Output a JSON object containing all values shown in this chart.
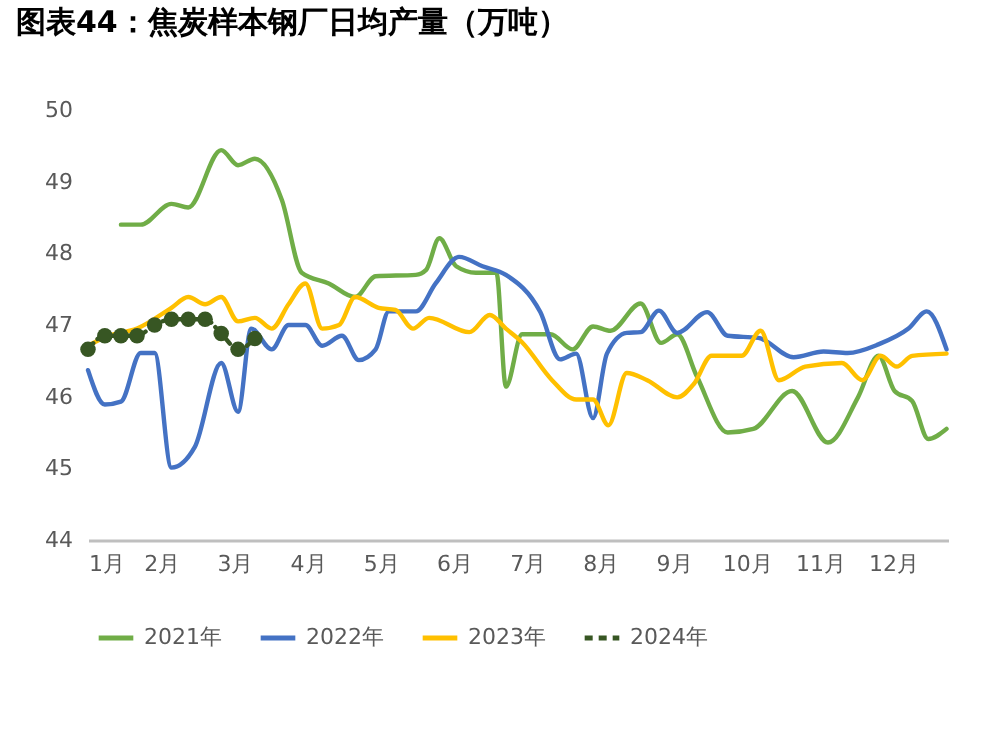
{
  "chart_data": {
    "type": "line",
    "title": "图表44：焦炭样本钢厂日均产量（万吨）",
    "xlim": [
      1,
      12.75
    ],
    "xticks": [
      {
        "value": 1,
        "label": "1月"
      },
      {
        "value": 2,
        "label": "2月"
      },
      {
        "value": 3,
        "label": "3月"
      },
      {
        "value": 4,
        "label": "4月"
      },
      {
        "value": 5,
        "label": "5月"
      },
      {
        "value": 6,
        "label": "6月"
      },
      {
        "value": 7,
        "label": "7月"
      },
      {
        "value": 8,
        "label": "8月"
      },
      {
        "value": 9,
        "label": "9月"
      },
      {
        "value": 10,
        "label": "10月"
      },
      {
        "value": 11,
        "label": "11月"
      },
      {
        "value": 12,
        "label": "12月"
      }
    ],
    "ylim": [
      44,
      50
    ],
    "yticks": [
      44,
      45,
      46,
      47,
      48,
      49,
      50
    ],
    "grid": false,
    "legend": "bottom",
    "series": [
      {
        "name": "2021年",
        "color": "#70ad47",
        "line_style": "solid",
        "marker": "none",
        "x": [
          1.45,
          1.72,
          2.14,
          2.37,
          2.82,
          3.05,
          3.28,
          3.65,
          3.92,
          4.29,
          4.65,
          4.93,
          5.48,
          5.62,
          5.8,
          6.03,
          6.3,
          6.58,
          6.71,
          6.93,
          7.32,
          7.62,
          7.9,
          8.14,
          8.55,
          8.83,
          9.05,
          9.32,
          9.74,
          10.09,
          10.62,
          11.11,
          11.52,
          11.8,
          12.02,
          12.26,
          12.48,
          12.73
        ],
        "values": [
          48.4,
          48.4,
          48.69,
          48.64,
          49.44,
          49.23,
          49.32,
          48.74,
          47.73,
          47.58,
          47.39,
          47.68,
          47.7,
          47.77,
          48.21,
          47.82,
          47.73,
          47.73,
          46.14,
          46.87,
          46.87,
          46.66,
          46.98,
          46.92,
          47.3,
          46.75,
          46.87,
          46.28,
          45.5,
          45.55,
          46.08,
          45.36,
          45.99,
          46.57,
          46.08,
          45.94,
          45.41,
          45.55
        ]
      },
      {
        "name": "2022年",
        "color": "#4472c4",
        "line_style": "solid",
        "marker": "none",
        "x": [
          1,
          1.23,
          1.45,
          1.72,
          1.91,
          2.14,
          2.46,
          2.82,
          3.05,
          3.23,
          3.51,
          3.74,
          3.97,
          4.2,
          4.47,
          4.7,
          4.93,
          5.11,
          5.48,
          5.75,
          6.07,
          6.39,
          6.71,
          7.18,
          7.45,
          7.67,
          7.9,
          8.09,
          8.36,
          8.55,
          8.8,
          9.05,
          9.46,
          9.74,
          10.16,
          10.64,
          11.05,
          11.38,
          11.8,
          12.21,
          12.46,
          12.73
        ],
        "values": [
          46.37,
          45.89,
          45.93,
          46.61,
          46.61,
          45.01,
          45.3,
          46.47,
          45.79,
          46.95,
          46.66,
          47,
          47,
          46.71,
          46.85,
          46.51,
          46.66,
          47.19,
          47.19,
          47.58,
          47.95,
          47.82,
          47.7,
          47.18,
          46.52,
          46.6,
          45.7,
          46.6,
          46.89,
          46.9,
          47.2,
          46.89,
          47.18,
          46.85,
          46.82,
          46.55,
          46.63,
          46.61,
          46.73,
          46.95,
          47.19,
          46.66
        ]
      },
      {
        "name": "2023年",
        "color": "#ffc000",
        "line_style": "solid",
        "marker": "none",
        "x": [
          1,
          1.28,
          1.67,
          2.14,
          2.37,
          2.6,
          2.82,
          3.05,
          3.28,
          3.51,
          3.74,
          3.97,
          4.2,
          4.43,
          4.65,
          4.97,
          5.2,
          5.44,
          5.66,
          6.21,
          6.49,
          6.71,
          6.93,
          7.34,
          7.67,
          7.9,
          8.11,
          8.36,
          8.64,
          9.05,
          9.28,
          9.52,
          9.93,
          10.19,
          10.44,
          10.8,
          11.3,
          11.58,
          11.83,
          12.05,
          12.26,
          12.73
        ],
        "values": [
          46.71,
          46.85,
          46.95,
          47.24,
          47.39,
          47.29,
          47.39,
          47.05,
          47.1,
          46.95,
          47.29,
          47.58,
          46.95,
          47,
          47.39,
          47.24,
          47.21,
          46.95,
          47.1,
          46.9,
          47.14,
          46.95,
          46.76,
          46.23,
          45.96,
          45.96,
          45.6,
          46.33,
          46.23,
          45.99,
          46.18,
          46.57,
          46.57,
          46.92,
          46.23,
          46.42,
          46.47,
          46.23,
          46.57,
          46.42,
          46.57,
          46.6
        ]
      },
      {
        "name": "2024年",
        "color": "#375623",
        "line_style": "dashed",
        "marker": "circle",
        "x": [
          1,
          1.23,
          1.45,
          1.67,
          1.91,
          2.14,
          2.37,
          2.6,
          2.82,
          3.05,
          3.28
        ],
        "values": [
          46.66,
          46.85,
          46.85,
          46.85,
          47,
          47.08,
          47.08,
          47.08,
          46.88,
          46.66,
          46.81
        ]
      }
    ]
  }
}
